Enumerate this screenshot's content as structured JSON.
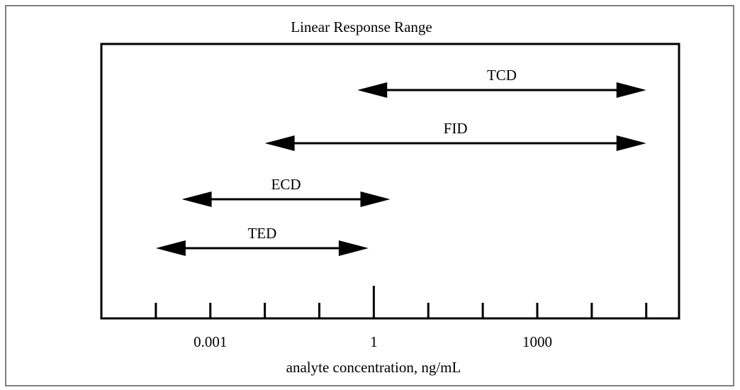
{
  "chart_data": {
    "type": "range",
    "title": "Linear Response Range",
    "xlabel": "analyte concentration, ng/mL",
    "categories": [
      "TCD",
      "FID",
      "ECD",
      "TED"
    ],
    "low": [
      0.5,
      0.01,
      0.0003,
      0.0001
    ],
    "high": [
      100000,
      100000,
      2,
      0.8
    ],
    "color": "#000000",
    "xscale": "log",
    "xlim": [
      1e-05,
      400000
    ],
    "xticks": [
      0.001,
      1,
      1000
    ],
    "minor_xticks": [
      0.0001,
      0.001,
      0.01,
      0.1,
      1,
      10,
      100,
      1000,
      10000,
      100000
    ],
    "long_xtick": 1
  }
}
